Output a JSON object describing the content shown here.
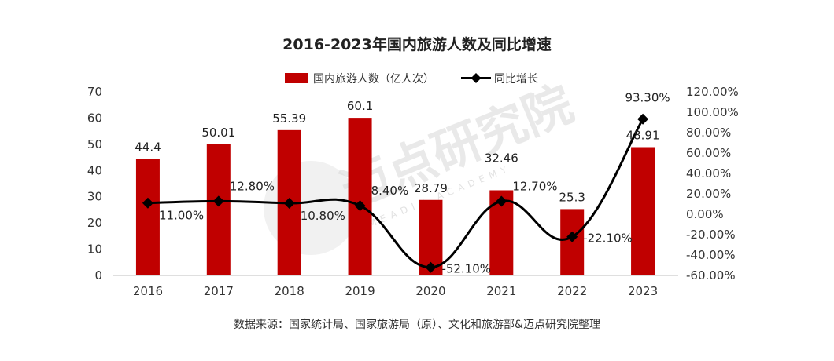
{
  "chart_data": {
    "type": "bar",
    "title": "2016-2023年国内旅游人数及同比增速",
    "categories": [
      "2016",
      "2017",
      "2018",
      "2019",
      "2020",
      "2021",
      "2022",
      "2023"
    ],
    "series": [
      {
        "name": "国内旅游人数（亿人次）",
        "type": "bar",
        "axis": "left",
        "color": "#c00000",
        "values": [
          44.4,
          50.01,
          55.39,
          60.1,
          28.79,
          32.46,
          25.3,
          48.91
        ],
        "labels": [
          "44.4",
          "50.01",
          "55.39",
          "60.1",
          "28.79",
          "32.46",
          "25.3",
          "48.91"
        ]
      },
      {
        "name": "同比增长",
        "type": "line",
        "axis": "right",
        "color": "#000000",
        "values": [
          11.0,
          12.8,
          10.8,
          8.4,
          -52.1,
          12.7,
          -22.1,
          93.3
        ],
        "labels": [
          "11.00%",
          "12.80%",
          "10.80%",
          "8.40%",
          "-52.10%",
          "12.70%",
          "-22.10%",
          "93.30%"
        ]
      }
    ],
    "y_left": {
      "ylim": [
        0,
        70
      ],
      "ticks": [
        "0",
        "10",
        "20",
        "30",
        "40",
        "50",
        "60",
        "70"
      ]
    },
    "y_right": {
      "ylim": [
        -60,
        120
      ],
      "ticks": [
        "-60.00%",
        "-40.00%",
        "-20.00%",
        "0.00%",
        "20.00%",
        "40.00%",
        "60.00%",
        "80.00%",
        "100.00%",
        "120.00%"
      ]
    },
    "legend_position": "top-center",
    "grid": false
  },
  "source": "数据来源：国家统计局、国家旅游局（原）、文化和旅游部&迈点研究院整理",
  "watermark": {
    "text": "迈点研究院",
    "subtext": "MEADIN ACADEMY"
  }
}
